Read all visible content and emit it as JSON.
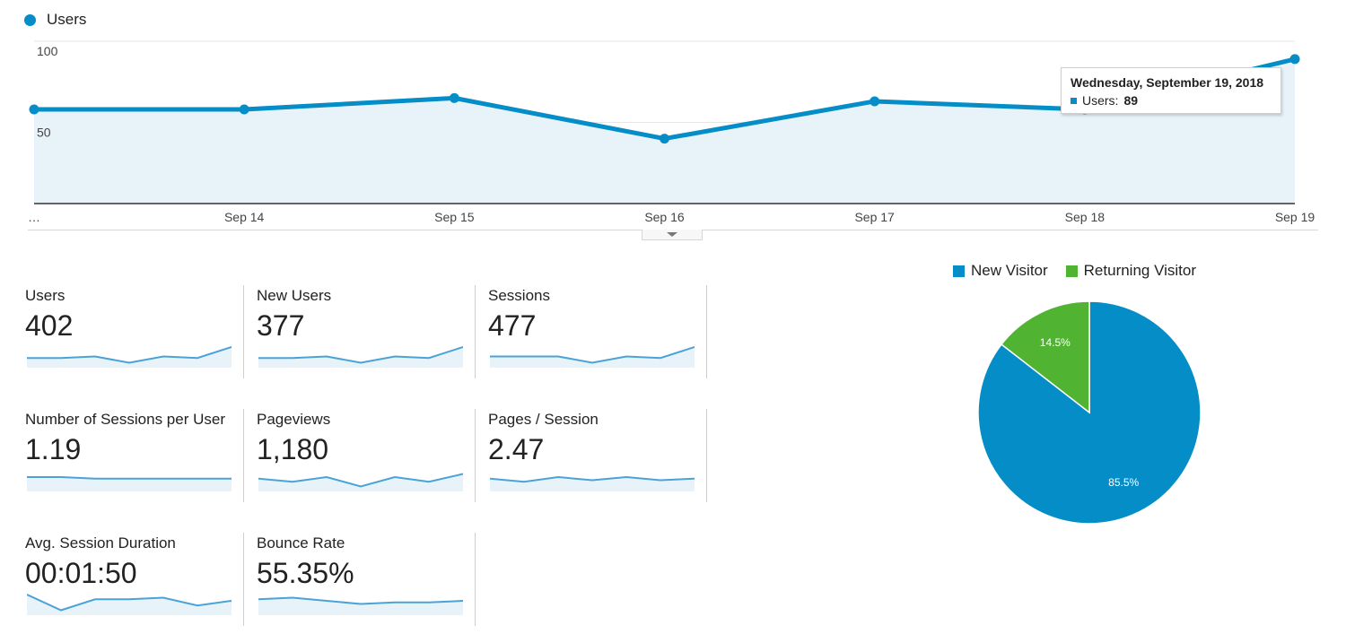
{
  "colors": {
    "primary": "#058dc7",
    "secondary": "#50b432",
    "area_fill": "#e8f3f9",
    "spark_line": "#4aa3d8"
  },
  "legend": {
    "label": "Users"
  },
  "chart_data": [
    {
      "type": "line",
      "x": [
        "",
        "Sep 14",
        "Sep 15",
        "Sep 16",
        "Sep 17",
        "Sep 18",
        "Sep 19"
      ],
      "x_first_tick": "…",
      "series": [
        {
          "name": "Users",
          "values": [
            58,
            58,
            65,
            40,
            63,
            58,
            89
          ]
        }
      ],
      "y_ticks": [
        "100",
        "50"
      ],
      "ylim": [
        0,
        100
      ],
      "grid": true
    },
    {
      "type": "pie",
      "categories": [
        "New Visitor",
        "Returning Visitor"
      ],
      "values": [
        85.5,
        14.5
      ],
      "value_labels": [
        "85.5%",
        "14.5%"
      ],
      "legend": "top"
    }
  ],
  "tooltip": {
    "date": "Wednesday, September 19, 2018",
    "label": "Users:",
    "value": "89"
  },
  "metrics": [
    {
      "label": "Users",
      "value": "402",
      "spark": [
        5,
        5,
        6,
        2,
        6,
        5,
        12
      ]
    },
    {
      "label": "New Users",
      "value": "377",
      "spark": [
        5,
        5,
        6,
        2,
        6,
        5,
        12
      ]
    },
    {
      "label": "Sessions",
      "value": "477",
      "spark": [
        6,
        6,
        6,
        2,
        6,
        5,
        12
      ]
    },
    {
      "label": "Number of Sessions per User",
      "value": "1.19",
      "spark": [
        8,
        8,
        7,
        7,
        7,
        7,
        7
      ]
    },
    {
      "label": "Pageviews",
      "value": "1,180",
      "spark": [
        7,
        5,
        8,
        2,
        8,
        5,
        10
      ]
    },
    {
      "label": "Pages / Session",
      "value": "2.47",
      "spark": [
        7,
        5,
        8,
        6,
        8,
        6,
        7
      ]
    },
    {
      "label": "Avg. Session Duration",
      "value": "00:01:50",
      "spark": [
        12,
        2,
        9,
        9,
        10,
        5,
        8
      ]
    },
    {
      "label": "Bounce Rate",
      "value": "55.35%",
      "spark": [
        9,
        10,
        8,
        6,
        7,
        7,
        8
      ]
    }
  ]
}
